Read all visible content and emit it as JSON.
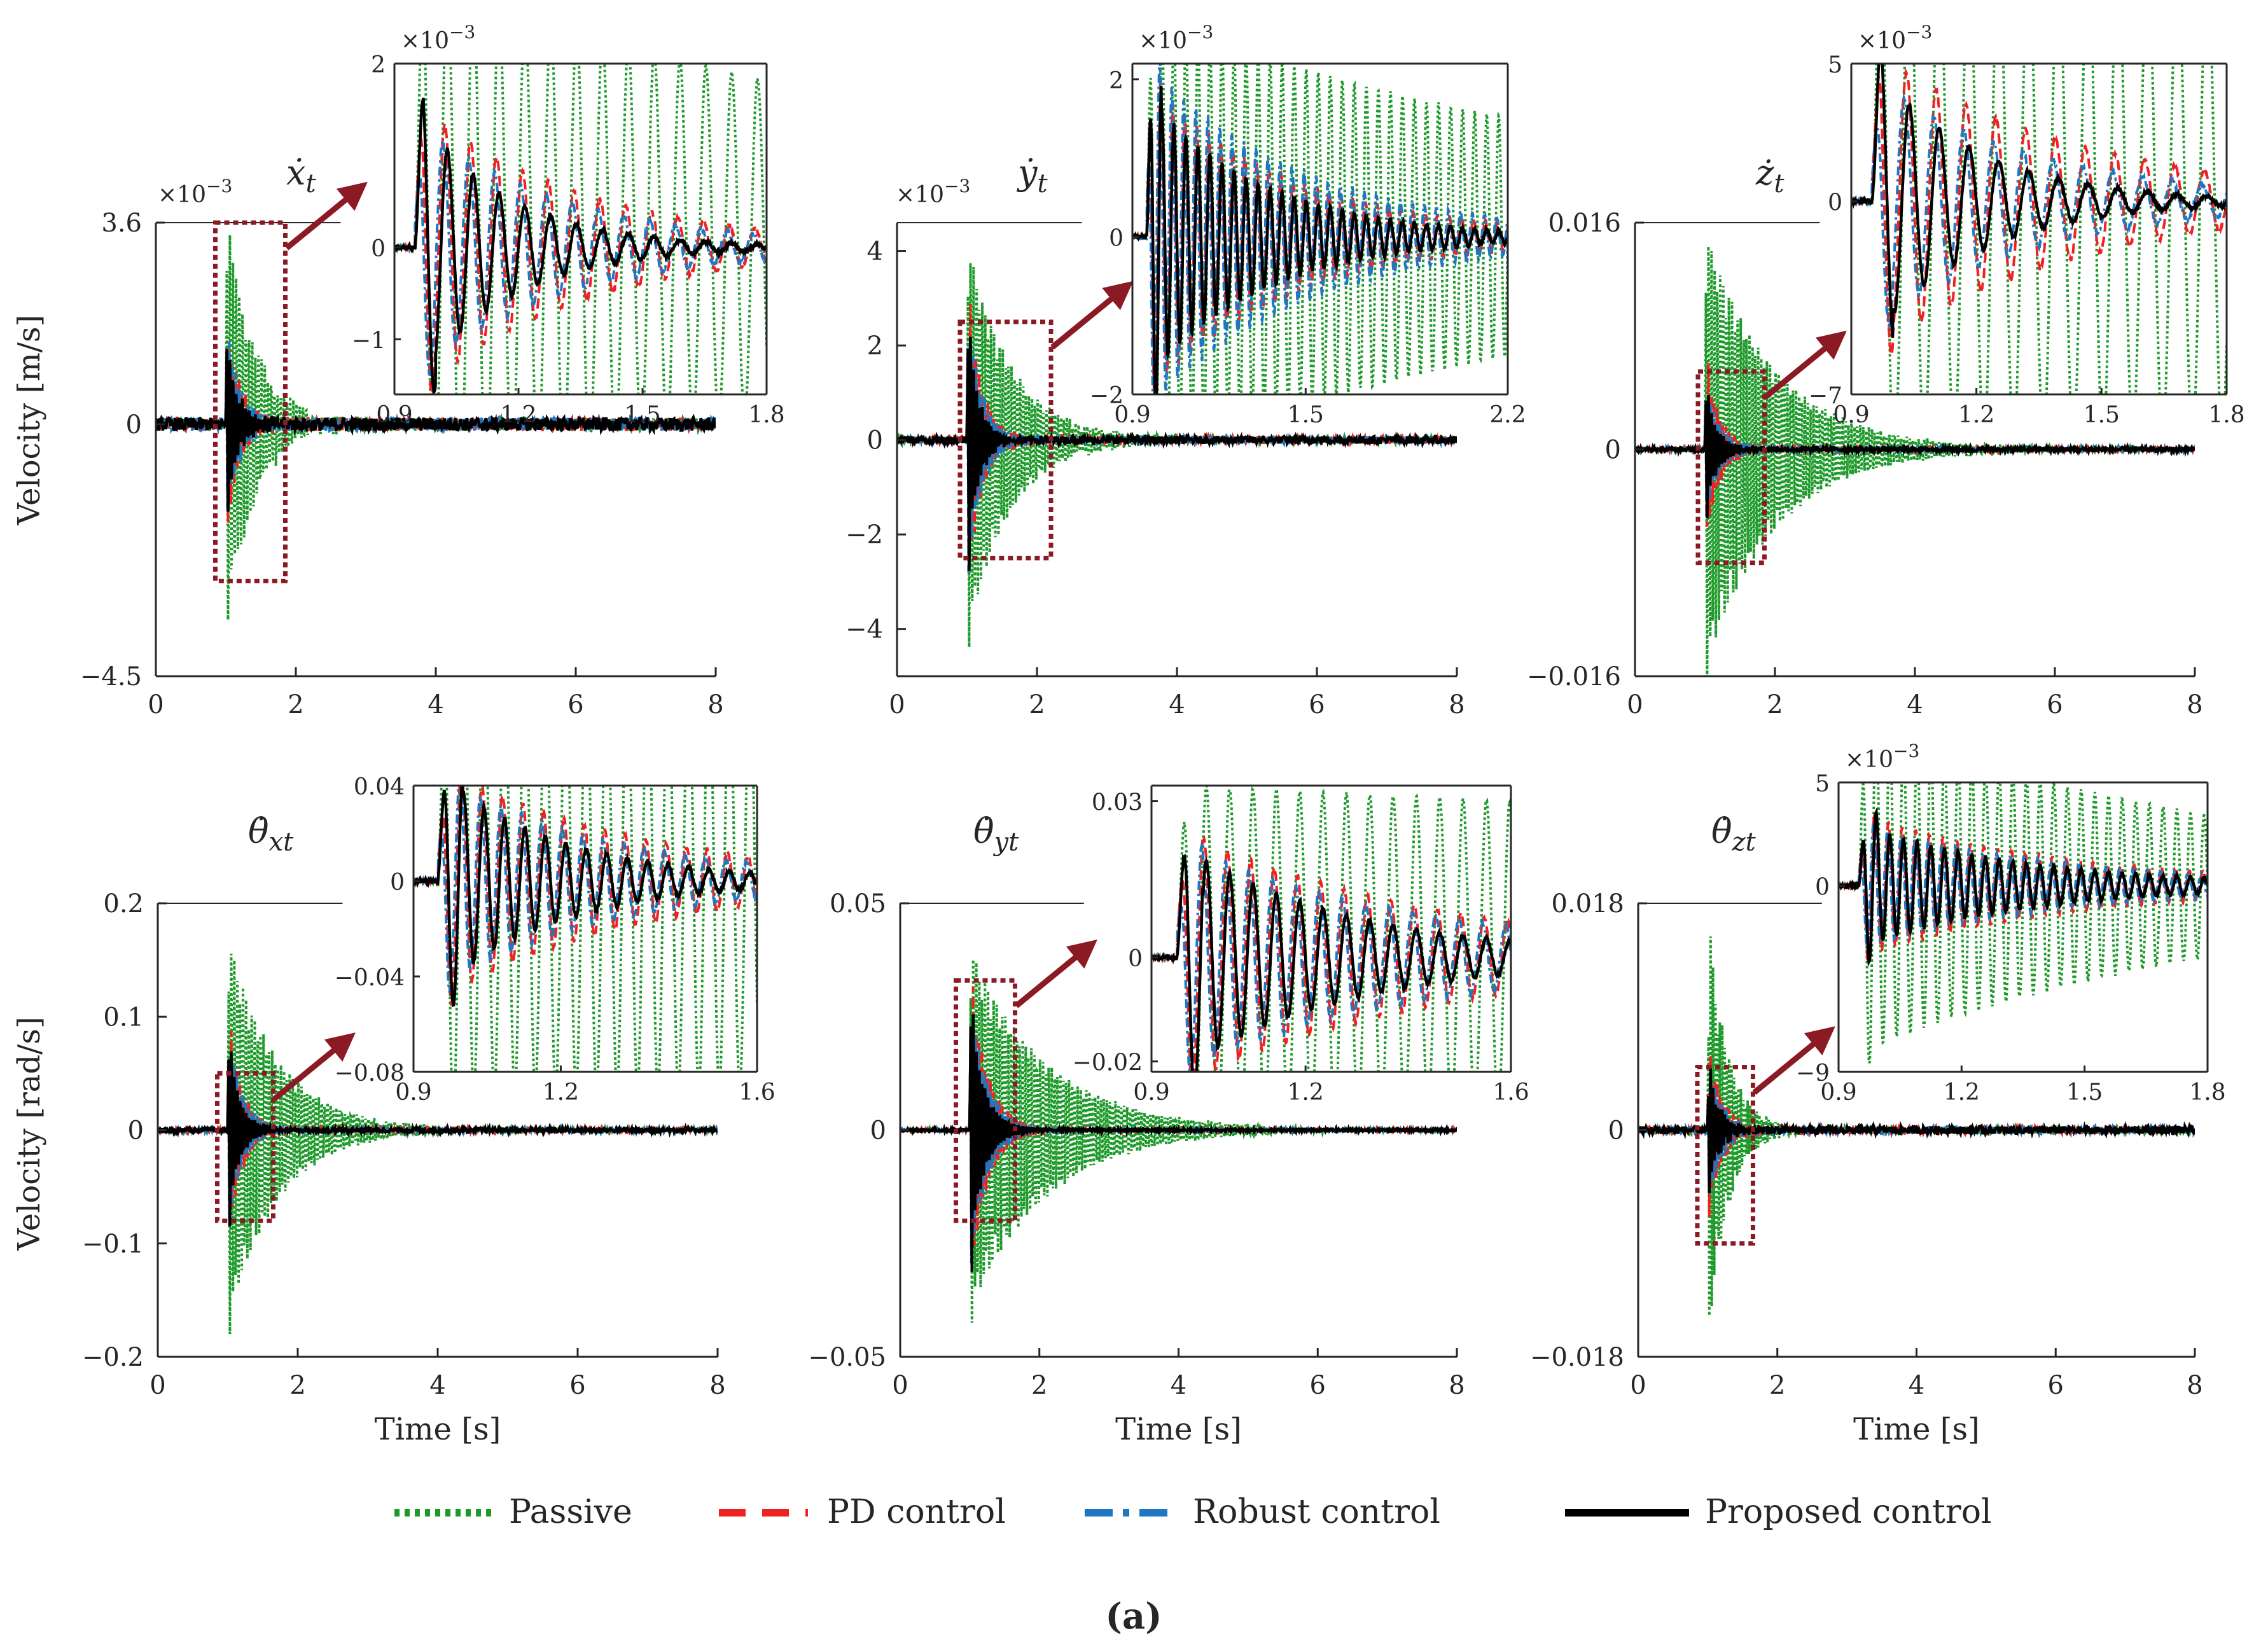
{
  "figure_caption": "(a)",
  "colors": {
    "passive": "#1e9a2a",
    "pd": "#ee2222",
    "robust": "#1f77c4",
    "proposed": "#000000",
    "arrow": "#8b1a24",
    "box": "#8b1a24"
  },
  "legend": [
    {
      "key": "passive",
      "label": "Passive"
    },
    {
      "key": "pd",
      "label": "PD control"
    },
    {
      "key": "robust",
      "label": "Robust control"
    },
    {
      "key": "proposed",
      "label": "Proposed control"
    }
  ],
  "row_labels": [
    "Velocity [m/s]",
    "Velocity [rad/s]"
  ],
  "xlabel": "Time [s]",
  "chart_data": [
    {
      "id": "xt",
      "type": "line",
      "title": "ẋt",
      "title_base": "ẋ",
      "title_sub": "t",
      "xlim": [
        0,
        8
      ],
      "xticks": [
        0,
        2,
        4,
        6,
        8
      ],
      "ylim": [
        -4.5,
        3.6
      ],
      "yticks": [
        -4.5,
        0,
        3.6
      ],
      "ytick_labels": [
        "−4.5",
        "0",
        "3.6"
      ],
      "exponent_label": "×10^−3",
      "exponent_base": "×10",
      "exponent_power": "−3",
      "ylabel": "Velocity [m/s]",
      "xlabel": "",
      "zoom_box": {
        "x": [
          0.85,
          1.85
        ],
        "y": [
          -2.8,
          3.6
        ]
      },
      "excitation": {
        "t0": 1.0,
        "passive_amp": 3.8,
        "passive_decay": 2.5,
        "pd_amp": 1.9,
        "pd_decay": 5,
        "robust_amp": 1.7,
        "robust_decay": 5,
        "proposed_amp": 1.6,
        "proposed_decay": 6,
        "freq": 22,
        "noise": 0.12
      },
      "inset": {
        "xlim": [
          0.9,
          1.8
        ],
        "xticks": [
          0.9,
          1.2,
          1.5,
          1.8
        ],
        "xtick_labels": [
          "0.9",
          "1.2",
          "1.5",
          "1.8"
        ],
        "ylim": [
          -1.6,
          2.0
        ],
        "yticks": [
          -1,
          0,
          2
        ],
        "ytick_labels": [
          "−1",
          "0",
          "2"
        ],
        "exponent_label": "×10^−3",
        "exponent_base": "×10",
        "exponent_power": "−3",
        "passive_amp": 3.0,
        "passive_decay": 0.6,
        "pd_amp": 1.6,
        "pd_decay": 2.5,
        "robust_amp": 1.4,
        "robust_decay": 2.8,
        "proposed_amp": 1.5,
        "proposed_decay": 4.5,
        "freq": 16
      }
    },
    {
      "id": "yt",
      "type": "line",
      "title": "ẏt",
      "title_base": "ẏ",
      "title_sub": "t",
      "xlim": [
        0,
        8
      ],
      "xticks": [
        0,
        2,
        4,
        6,
        8
      ],
      "ylim": [
        -5,
        4.6
      ],
      "yticks": [
        -4,
        -2,
        0,
        2,
        4
      ],
      "ytick_labels": [
        "−4",
        "−2",
        "0",
        "2",
        "4"
      ],
      "exponent_label": "×10^−3",
      "exponent_base": "×10",
      "exponent_power": "−3",
      "ylabel": "",
      "xlabel": "",
      "zoom_box": {
        "x": [
          0.9,
          2.2
        ],
        "y": [
          -2.5,
          2.5
        ]
      },
      "excitation": {
        "t0": 1.0,
        "passive_amp": 4.2,
        "passive_decay": 1.6,
        "pd_amp": 3.3,
        "pd_decay": 5,
        "robust_amp": 3.0,
        "robust_decay": 5,
        "proposed_amp": 2.5,
        "proposed_decay": 6,
        "freq": 24,
        "noise": 0.08
      },
      "inset": {
        "xlim": [
          0.9,
          2.2
        ],
        "xticks": [
          0.9,
          1.5,
          2.2
        ],
        "xtick_labels": [
          "0.9",
          "1.5",
          "2.2"
        ],
        "ylim": [
          -2.0,
          2.2
        ],
        "yticks": [
          -2,
          0,
          2
        ],
        "ytick_labels": [
          "−2",
          "0",
          "2"
        ],
        "exponent_label": "×10^−3",
        "exponent_base": "×10",
        "exponent_power": "−3",
        "passive_amp": 2.8,
        "passive_decay": 0.5,
        "pd_amp": 2.0,
        "pd_decay": 2.0,
        "robust_amp": 2.2,
        "robust_decay": 1.8,
        "proposed_amp": 1.8,
        "proposed_decay": 2.5,
        "freq": 24
      }
    },
    {
      "id": "zt",
      "type": "line",
      "title": "żt",
      "title_base": "ż",
      "title_sub": "t",
      "xlim": [
        0,
        8
      ],
      "xticks": [
        0,
        2,
        4,
        6,
        8
      ],
      "ylim": [
        -0.016,
        0.016
      ],
      "yticks": [
        -0.016,
        0,
        0.016
      ],
      "ytick_labels": [
        "−0.016",
        "0",
        "0.016"
      ],
      "exponent_label": "",
      "exponent_base": "",
      "exponent_power": "",
      "ylabel": "",
      "xlabel": "",
      "zoom_box": {
        "x": [
          0.9,
          1.85
        ],
        "y": [
          -0.008,
          0.0055
        ]
      },
      "excitation": {
        "t0": 1.0,
        "passive_amp": 0.0155,
        "passive_decay": 1.0,
        "pd_amp": 0.007,
        "pd_decay": 5,
        "robust_amp": 0.005,
        "robust_decay": 5,
        "proposed_amp": 0.0045,
        "proposed_decay": 6,
        "freq": 24,
        "noise": 0.00015
      },
      "inset": {
        "xlim": [
          0.9,
          1.8
        ],
        "xticks": [
          0.9,
          1.2,
          1.5,
          1.8
        ],
        "xtick_labels": [
          "0.9",
          "1.2",
          "1.5",
          "1.8"
        ],
        "ylim": [
          -7,
          5
        ],
        "yticks": [
          -7,
          0,
          5
        ],
        "ytick_labels": [
          "−7",
          "0",
          "5"
        ],
        "exponent_label": "×10^−3",
        "exponent_base": "×10",
        "exponent_power": "−3",
        "passive_amp": 9,
        "passive_decay": 0.05,
        "pd_amp": 5.5,
        "pd_decay": 2.0,
        "robust_amp": 4.5,
        "robust_decay": 2.5,
        "proposed_amp": 5,
        "proposed_decay": 4.0,
        "freq": 14
      }
    },
    {
      "id": "thxt",
      "type": "line",
      "title": "θ̇xt",
      "title_base": "θ̇",
      "title_sub": "xt",
      "xlim": [
        0,
        8
      ],
      "xticks": [
        0,
        2,
        4,
        6,
        8
      ],
      "ylim": [
        -0.2,
        0.2
      ],
      "yticks": [
        -0.2,
        -0.1,
        0,
        0.1,
        0.2
      ],
      "ytick_labels": [
        "−0.2",
        "−0.1",
        "0",
        "0.1",
        "0.2"
      ],
      "exponent_label": "",
      "exponent_base": "",
      "exponent_power": "",
      "ylabel": "Velocity [rad/s]",
      "xlabel": "Time [s]",
      "zoom_box": {
        "x": [
          0.85,
          1.65
        ],
        "y": [
          -0.08,
          0.05
        ]
      },
      "excitation": {
        "t0": 1.0,
        "passive_amp": 0.17,
        "passive_decay": 1.4,
        "pd_amp": 0.1,
        "pd_decay": 5,
        "robust_amp": 0.09,
        "robust_decay": 5,
        "proposed_amp": 0.08,
        "proposed_decay": 6,
        "freq": 24,
        "noise": 0.002
      },
      "inset": {
        "xlim": [
          0.9,
          1.6
        ],
        "xticks": [
          0.9,
          1.2,
          1.6
        ],
        "xtick_labels": [
          "0.9",
          "1.2",
          "1.6"
        ],
        "ylim": [
          -0.08,
          0.04
        ],
        "yticks": [
          -0.08,
          -0.04,
          0,
          0.04
        ],
        "ytick_labels": [
          "−0.08",
          "−0.04",
          "0",
          "0.04"
        ],
        "exponent_label": "",
        "exponent_base": "",
        "exponent_power": "",
        "passive_amp": 0.09,
        "passive_decay": 0.05,
        "pd_amp": 0.05,
        "pd_decay": 2.5,
        "robust_amp": 0.045,
        "robust_decay": 2.8,
        "proposed_amp": 0.045,
        "proposed_decay": 4.0,
        "freq": 24
      }
    },
    {
      "id": "thyt",
      "type": "line",
      "title": "θ̇yt",
      "title_base": "θ̇",
      "title_sub": "yt",
      "xlim": [
        0,
        8
      ],
      "xticks": [
        0,
        2,
        4,
        6,
        8
      ],
      "ylim": [
        -0.05,
        0.05
      ],
      "yticks": [
        -0.05,
        0,
        0.05
      ],
      "ytick_labels": [
        "−0.05",
        "0",
        "0.05"
      ],
      "exponent_label": "",
      "exponent_base": "",
      "exponent_power": "",
      "ylabel": "",
      "xlabel": "Time [s]",
      "zoom_box": {
        "x": [
          0.8,
          1.65
        ],
        "y": [
          -0.02,
          0.033
        ]
      },
      "excitation": {
        "t0": 1.0,
        "passive_amp": 0.04,
        "passive_decay": 0.9,
        "pd_amp": 0.035,
        "pd_decay": 4,
        "robust_amp": 0.03,
        "robust_decay": 4,
        "proposed_amp": 0.028,
        "proposed_decay": 5,
        "freq": 24,
        "noise": 0.0003
      },
      "inset": {
        "xlim": [
          0.9,
          1.6
        ],
        "xticks": [
          0.9,
          1.2,
          1.6
        ],
        "xtick_labels": [
          "0.9",
          "1.2",
          "1.6"
        ],
        "ylim": [
          -0.022,
          0.033
        ],
        "yticks": [
          -0.02,
          0,
          0.03
        ],
        "ytick_labels": [
          "−0.02",
          "0",
          "0.03"
        ],
        "exponent_label": "",
        "exponent_base": "",
        "exponent_power": "",
        "passive_amp": 0.033,
        "passive_decay": 0.15,
        "pd_amp": 0.025,
        "pd_decay": 2.0,
        "robust_amp": 0.022,
        "robust_decay": 2.0,
        "proposed_amp": 0.022,
        "proposed_decay": 3.0,
        "freq": 22
      }
    },
    {
      "id": "thzt",
      "type": "line",
      "title": "θ̇zt",
      "title_base": "θ̇",
      "title_sub": "zt",
      "xlim": [
        0,
        8
      ],
      "xticks": [
        0,
        2,
        4,
        6,
        8
      ],
      "ylim": [
        -0.018,
        0.018
      ],
      "yticks": [
        -0.018,
        0,
        0.018
      ],
      "ytick_labels": [
        "−0.018",
        "0",
        "0.018"
      ],
      "exponent_label": "",
      "exponent_base": "",
      "exponent_power": "",
      "ylabel": "",
      "xlabel": "Time [s]",
      "zoom_box": {
        "x": [
          0.85,
          1.65
        ],
        "y": [
          -0.009,
          0.005
        ]
      },
      "excitation": {
        "t0": 1.0,
        "passive_amp": 0.017,
        "passive_decay": 3.5,
        "pd_amp": 0.007,
        "pd_decay": 5,
        "robust_amp": 0.006,
        "robust_decay": 5,
        "proposed_amp": 0.005,
        "proposed_decay": 6,
        "freq": 30,
        "noise": 0.0003
      },
      "inset": {
        "xlim": [
          0.9,
          1.8
        ],
        "xticks": [
          0.9,
          1.2,
          1.5,
          1.8
        ],
        "xtick_labels": [
          "0.9",
          "1.2",
          "1.5",
          "1.8"
        ],
        "ylim": [
          -9,
          5
        ],
        "yticks": [
          -9,
          0,
          5
        ],
        "ytick_labels": [
          "−9",
          "0",
          "5"
        ],
        "exponent_label": "×10^−3",
        "exponent_base": "×10",
        "exponent_power": "−3",
        "passive_amp": 8,
        "passive_decay": 1.0,
        "pd_amp": 3.5,
        "pd_decay": 2.0,
        "robust_amp": 3.0,
        "robust_decay": 2.0,
        "proposed_amp": 3.0,
        "proposed_decay": 2.5,
        "freq": 30
      }
    }
  ]
}
